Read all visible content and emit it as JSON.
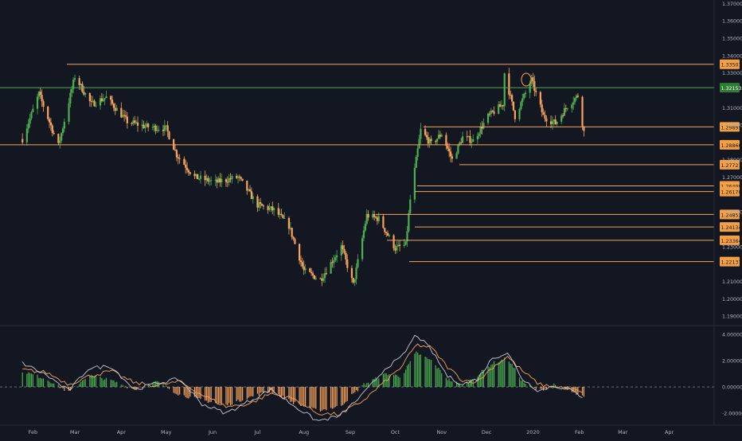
{
  "colors": {
    "background": "#131722",
    "up": "#26a69a",
    "up_green": "#4caf50",
    "down": "#f7a35c",
    "level_line": "#f7a35c",
    "current_line": "#4caf50",
    "axis_text": "#b2b5be",
    "osc_line": "#c8c8d0",
    "osc_signal": "#f7a35c",
    "zero_line": "#787b86"
  },
  "chart_data": [
    {
      "type": "line",
      "title": "",
      "subtitle": "",
      "xlabel": "",
      "ylabel": "",
      "x_tick_labels": [
        "Feb",
        "Mar",
        "Apr",
        "May",
        "Jun",
        "Jul",
        "Aug",
        "Sep",
        "Oct",
        "Nov",
        "Dec",
        "2020",
        "Feb",
        "Mar",
        "Apr"
      ],
      "y_tick_labels": [
        "1.37000",
        "1.36000",
        "1.35000",
        "1.34000",
        "1.33000",
        "1.31000",
        "1.30000",
        "1.28000",
        "1.27000",
        "1.25000",
        "1.23000",
        "1.21000",
        "1.20000",
        "1.19000"
      ],
      "ylim": [
        1.185,
        1.372
      ],
      "price_series": {
        "name": "",
        "x": [
          "2019-01-25",
          "2019-02-05",
          "2019-02-18",
          "2019-03-01",
          "2019-03-12",
          "2019-03-22",
          "2019-04-05",
          "2019-04-18",
          "2019-05-01",
          "2019-05-08",
          "2019-05-20",
          "2019-06-03",
          "2019-06-18",
          "2019-07-01",
          "2019-07-12",
          "2019-07-22",
          "2019-08-01",
          "2019-08-12",
          "2019-08-26",
          "2019-09-03",
          "2019-09-12",
          "2019-09-20",
          "2019-10-01",
          "2019-10-08",
          "2019-10-11",
          "2019-10-18",
          "2019-10-25",
          "2019-11-01",
          "2019-11-08",
          "2019-11-15",
          "2019-11-22",
          "2019-12-02",
          "2019-12-12",
          "2019-12-13",
          "2019-12-20",
          "2019-12-31",
          "2020-01-08",
          "2020-01-16",
          "2020-01-24",
          "2020-01-31",
          "2020-02-04"
        ],
        "y": [
          1.292,
          1.318,
          1.288,
          1.328,
          1.312,
          1.316,
          1.302,
          1.299,
          1.298,
          1.283,
          1.27,
          1.267,
          1.27,
          1.254,
          1.251,
          1.242,
          1.216,
          1.211,
          1.23,
          1.208,
          1.248,
          1.246,
          1.229,
          1.231,
          1.257,
          1.297,
          1.289,
          1.295,
          1.28,
          1.293,
          1.291,
          1.305,
          1.312,
          1.33,
          1.305,
          1.326,
          1.305,
          1.301,
          1.311,
          1.317,
          1.296
        ]
      },
      "horizontal_levels": [
        {
          "label": "1.33501",
          "value": 1.33501
        },
        {
          "label": "1.32153",
          "value": 1.32153,
          "current": true
        },
        {
          "label": "1.29895",
          "value": 1.29895
        },
        {
          "label": "1.28866",
          "value": 1.28866
        },
        {
          "label": "1.27721",
          "value": 1.27721
        },
        {
          "label": "1.26499",
          "value": 1.26499
        },
        {
          "label": "1.26170",
          "value": 1.2617
        },
        {
          "label": "1.24853",
          "value": 1.24853
        },
        {
          "label": "1.24134",
          "value": 1.24134
        },
        {
          "label": "1.23364",
          "value": 1.23364
        },
        {
          "label": "1.22137",
          "value": 1.22137
        }
      ]
    },
    {
      "type": "bar",
      "title": "",
      "xlabel": "",
      "ylabel": "",
      "y_tick_labels": [
        "4.00000",
        "2.00000",
        "0.00000",
        "-2.00000"
      ],
      "ylim": [
        -2.9,
        4.6
      ],
      "histogram": {
        "name": "",
        "x": [
          "2019-01-25",
          "2019-02-10",
          "2019-02-25",
          "2019-03-10",
          "2019-03-25",
          "2019-04-10",
          "2019-04-25",
          "2019-05-10",
          "2019-05-25",
          "2019-06-10",
          "2019-06-25",
          "2019-07-10",
          "2019-07-25",
          "2019-08-10",
          "2019-08-25",
          "2019-09-10",
          "2019-09-25",
          "2019-10-05",
          "2019-10-15",
          "2019-10-25",
          "2019-11-05",
          "2019-11-15",
          "2019-11-25",
          "2019-12-05",
          "2019-12-15",
          "2019-12-25",
          "2020-01-05",
          "2020-01-15",
          "2020-01-25",
          "2020-02-04"
        ],
        "y": [
          1.2,
          0.6,
          -0.4,
          0.9,
          0.5,
          -0.2,
          0.4,
          -0.6,
          -1.0,
          -1.4,
          -0.8,
          -0.3,
          -1.2,
          -1.8,
          -1.5,
          0.2,
          1.0,
          0.8,
          2.6,
          2.0,
          0.6,
          0.1,
          0.9,
          1.8,
          2.2,
          0.4,
          -0.3,
          0.2,
          -0.3,
          -0.8
        ]
      },
      "fast_line": {
        "name": "",
        "x": [
          "2019-01-25",
          "2019-02-10",
          "2019-02-25",
          "2019-03-10",
          "2019-03-25",
          "2019-04-10",
          "2019-04-25",
          "2019-05-10",
          "2019-05-25",
          "2019-06-10",
          "2019-06-25",
          "2019-07-10",
          "2019-07-25",
          "2019-08-10",
          "2019-08-25",
          "2019-09-10",
          "2019-09-25",
          "2019-10-05",
          "2019-10-15",
          "2019-10-25",
          "2019-11-05",
          "2019-11-15",
          "2019-11-25",
          "2019-12-05",
          "2019-12-15",
          "2019-12-25",
          "2020-01-05",
          "2020-01-15",
          "2020-01-25",
          "2020-02-04"
        ],
        "y": [
          1.8,
          0.9,
          -0.3,
          1.4,
          1.6,
          -0.2,
          0.3,
          0.6,
          -1.3,
          -2.0,
          -1.1,
          -0.2,
          -1.4,
          -2.6,
          -2.2,
          -0.5,
          1.5,
          2.2,
          4.0,
          2.8,
          0.8,
          0.2,
          0.6,
          2.2,
          2.6,
          0.6,
          -0.3,
          0.1,
          -0.2,
          -0.8
        ]
      },
      "signal_line": {
        "name": "",
        "x": [
          "2019-01-25",
          "2019-02-10",
          "2019-02-25",
          "2019-03-10",
          "2019-03-25",
          "2019-04-10",
          "2019-04-25",
          "2019-05-10",
          "2019-05-25",
          "2019-06-10",
          "2019-06-25",
          "2019-07-10",
          "2019-07-25",
          "2019-08-10",
          "2019-08-25",
          "2019-09-10",
          "2019-09-25",
          "2019-10-05",
          "2019-10-15",
          "2019-10-25",
          "2019-11-05",
          "2019-11-15",
          "2019-11-25",
          "2019-12-05",
          "2019-12-15",
          "2019-12-25",
          "2020-01-05",
          "2020-01-15",
          "2020-01-25",
          "2020-02-04"
        ],
        "y": [
          1.3,
          1.1,
          0.2,
          0.8,
          1.2,
          0.3,
          0.1,
          0.4,
          -0.6,
          -1.5,
          -1.3,
          -0.5,
          -0.9,
          -2.0,
          -2.1,
          -1.0,
          0.5,
          1.5,
          3.2,
          3.0,
          1.5,
          0.5,
          0.4,
          1.5,
          2.3,
          1.2,
          0.2,
          0.0,
          -0.1,
          -0.5
        ]
      }
    }
  ]
}
